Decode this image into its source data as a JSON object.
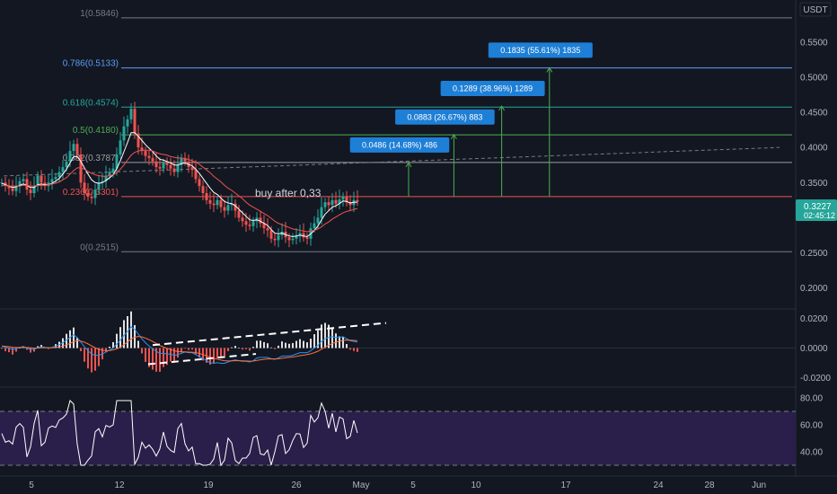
{
  "currency": "USDT",
  "colors": {
    "background": "#131722",
    "up": "#26a69a",
    "down": "#ef5350",
    "price_tag": "#26a69a",
    "measure_box": "#1e7fd6",
    "measure_line": "#4caf50",
    "rsi_band": "#2a1f4a"
  },
  "current_price": {
    "value": "0.3227",
    "countdown": "02:45:12"
  },
  "chart_data": [
    {
      "type": "candlestick",
      "panel": "price",
      "ylim": [
        0.17,
        0.61
      ],
      "y_ticks": [
        "0.5500",
        "0.5000",
        "0.4500",
        "0.4000",
        "0.3500",
        "0.3000",
        "0.2500",
        "0.2000"
      ],
      "fib_levels": [
        {
          "label": "1(0.5846)",
          "value": 0.5846,
          "color": "#787b86"
        },
        {
          "label": "0.786(0.5133)",
          "value": 0.5133,
          "color": "#5b9cf6"
        },
        {
          "label": "0.618(0.4574)",
          "value": 0.4574,
          "color": "#26a69a"
        },
        {
          "label": "0.5(0.4180)",
          "value": 0.418,
          "color": "#4caf50"
        },
        {
          "label": "0.382(0.3787)",
          "value": 0.3787,
          "color": "#9e9e9e"
        },
        {
          "label": "0.236(0.3301)",
          "value": 0.3301,
          "color": "#ef5350"
        },
        {
          "label": "0(0.2515)",
          "value": 0.2515,
          "color": "#787b86"
        }
      ],
      "annotation": "buy after 0,33",
      "trendline": {
        "from": [
          0.3,
          0.408
        ],
        "to": [
          30,
          0.4
        ]
      },
      "measurements": [
        {
          "label": "0.0486 (14.68%) 486",
          "from": 0.3301,
          "to": 0.3787,
          "x": 21
        },
        {
          "label": "0.0883 (26.67%) 883",
          "from": 0.3301,
          "to": 0.4184,
          "x": 24.6
        },
        {
          "label": "0.1289 (38.96%) 1289",
          "from": 0.3301,
          "to": 0.459,
          "x": 28.4
        },
        {
          "label": "0.1835 (55.61%) 1835",
          "from": 0.3301,
          "to": 0.5136,
          "x": 32.2
        }
      ],
      "series": [
        {
          "name": "price",
          "closes": [
            0.35,
            0.345,
            0.342,
            0.338,
            0.345,
            0.352,
            0.355,
            0.34,
            0.335,
            0.345,
            0.36,
            0.35,
            0.345,
            0.35,
            0.355,
            0.358,
            0.365,
            0.372,
            0.38,
            0.395,
            0.405,
            0.39,
            0.35,
            0.335,
            0.33,
            0.328,
            0.34,
            0.35,
            0.352,
            0.36,
            0.365,
            0.37,
            0.39,
            0.41,
            0.43,
            0.44,
            0.455,
            0.42,
            0.4,
            0.395,
            0.388,
            0.385,
            0.38,
            0.372,
            0.37,
            0.378,
            0.375,
            0.37,
            0.365,
            0.375,
            0.385,
            0.38,
            0.372,
            0.368,
            0.355,
            0.345,
            0.335,
            0.325,
            0.32,
            0.318,
            0.325,
            0.315,
            0.31,
            0.318,
            0.32,
            0.31,
            0.3,
            0.295,
            0.29,
            0.288,
            0.295,
            0.3,
            0.292,
            0.285,
            0.282,
            0.27,
            0.268,
            0.275,
            0.28,
            0.272,
            0.268,
            0.27,
            0.275,
            0.278,
            0.272,
            0.27,
            0.285,
            0.292,
            0.3,
            0.315,
            0.322,
            0.318,
            0.325,
            0.32,
            0.326,
            0.33,
            0.322,
            0.318,
            0.325,
            0.323
          ]
        },
        {
          "name": "ma_fast",
          "closes": [
            0.349,
            0.347,
            0.345,
            0.343,
            0.344,
            0.346,
            0.348,
            0.346,
            0.343,
            0.343,
            0.347,
            0.348,
            0.347,
            0.347,
            0.349,
            0.352,
            0.356,
            0.362,
            0.369,
            0.378,
            0.387,
            0.387,
            0.38,
            0.371,
            0.362,
            0.354,
            0.35,
            0.349,
            0.35,
            0.353,
            0.357,
            0.361,
            0.37,
            0.381,
            0.394,
            0.407,
            0.421,
            0.421,
            0.416,
            0.41,
            0.404,
            0.399,
            0.394,
            0.388,
            0.383,
            0.382,
            0.38,
            0.378,
            0.375,
            0.375,
            0.377,
            0.378,
            0.376,
            0.374,
            0.369,
            0.363,
            0.356,
            0.349,
            0.342,
            0.336,
            0.333,
            0.328,
            0.323,
            0.321,
            0.32,
            0.317,
            0.312,
            0.307,
            0.302,
            0.297,
            0.296,
            0.297,
            0.295,
            0.292,
            0.289,
            0.283,
            0.278,
            0.277,
            0.278,
            0.276,
            0.274,
            0.273,
            0.274,
            0.275,
            0.274,
            0.273,
            0.277,
            0.282,
            0.288,
            0.297,
            0.305,
            0.31,
            0.315,
            0.317,
            0.32,
            0.324,
            0.323,
            0.321,
            0.322,
            0.322
          ]
        },
        {
          "name": "ma_slow",
          "closes": [
            0.346,
            0.346,
            0.345,
            0.345,
            0.345,
            0.345,
            0.346,
            0.346,
            0.345,
            0.345,
            0.346,
            0.346,
            0.346,
            0.347,
            0.348,
            0.349,
            0.351,
            0.354,
            0.357,
            0.362,
            0.367,
            0.371,
            0.371,
            0.369,
            0.366,
            0.363,
            0.361,
            0.36,
            0.359,
            0.359,
            0.36,
            0.361,
            0.364,
            0.369,
            0.375,
            0.382,
            0.389,
            0.393,
            0.395,
            0.396,
            0.396,
            0.396,
            0.395,
            0.393,
            0.391,
            0.39,
            0.389,
            0.387,
            0.386,
            0.385,
            0.385,
            0.384,
            0.383,
            0.381,
            0.379,
            0.376,
            0.372,
            0.368,
            0.364,
            0.359,
            0.355,
            0.351,
            0.346,
            0.342,
            0.339,
            0.335,
            0.331,
            0.327,
            0.322,
            0.318,
            0.315,
            0.312,
            0.309,
            0.306,
            0.303,
            0.299,
            0.295,
            0.292,
            0.29,
            0.288,
            0.286,
            0.284,
            0.283,
            0.282,
            0.281,
            0.28,
            0.281,
            0.282,
            0.284,
            0.287,
            0.291,
            0.294,
            0.298,
            0.301,
            0.304,
            0.307,
            0.309,
            0.31,
            0.312,
            0.313
          ]
        }
      ]
    },
    {
      "type": "macd",
      "panel": "macd",
      "ylim": [
        -0.0265,
        0.0265
      ],
      "y_ticks": [
        "0.0200",
        "0.0000",
        "-0.0200"
      ],
      "annotation_lines": [
        {
          "from": [
            34,
            0.002
          ],
          "to": [
            86,
            0.017
          ]
        },
        {
          "from": [
            33,
            -0.011
          ],
          "to": [
            57,
            -0.004
          ]
        }
      ]
    },
    {
      "type": "line",
      "panel": "rsi",
      "ylim": [
        22,
        88
      ],
      "y_ticks": [
        "80.00",
        "60.00",
        "40.00"
      ],
      "bands": [
        30,
        70
      ]
    }
  ],
  "x_axis": {
    "labels": [
      "5",
      "12",
      "19",
      "26",
      "May",
      "5",
      "10",
      "17",
      "24",
      "28",
      "Jun"
    ]
  }
}
